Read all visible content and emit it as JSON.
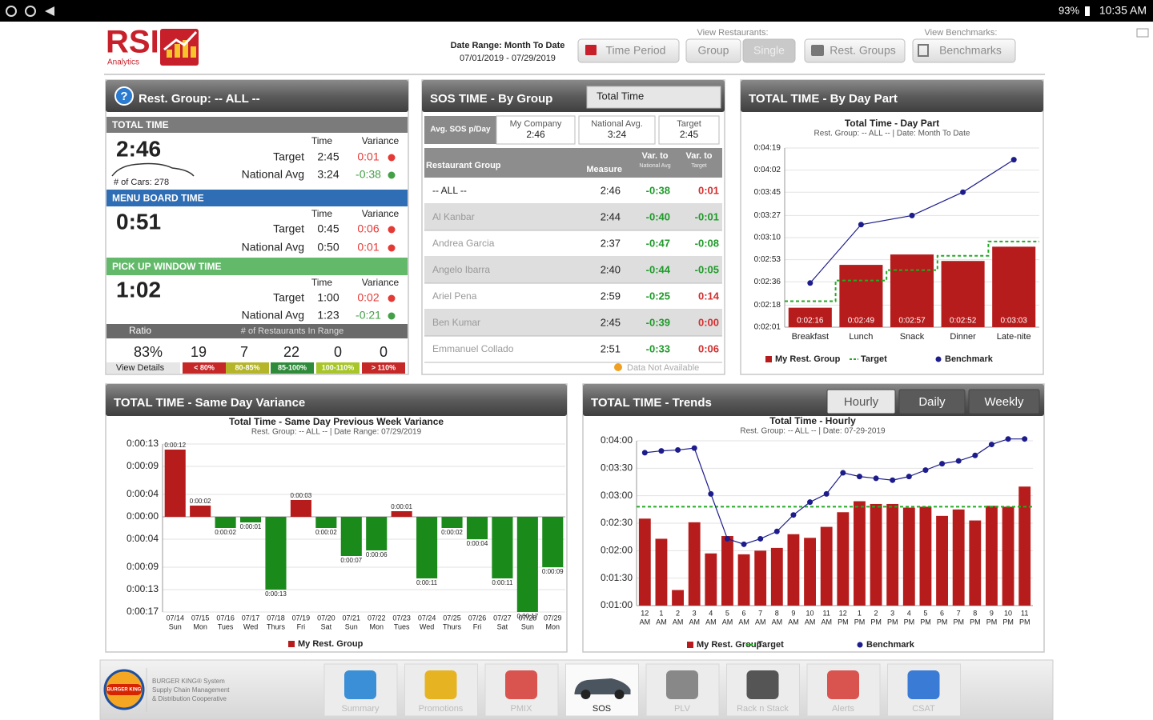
{
  "status_bar": {
    "battery": "93%",
    "time": "10:35 AM"
  },
  "header": {
    "logo": "RSI",
    "logo_sub": "Analytics",
    "date_range_label": "Date Range: Month To Date",
    "date_range": "07/01/2019 - 07/29/2019",
    "time_period": "Time Period",
    "view_restaurants": "View Restaurants:",
    "group": "Group",
    "single": "Single",
    "rest_groups": "Rest. Groups",
    "view_benchmarks": "View Benchmarks:",
    "benchmarks": "Benchmarks"
  },
  "summary": {
    "help": "?",
    "title": "Rest. Group: -- ALL --",
    "col_time": "Time",
    "col_variance": "Variance",
    "sections": [
      {
        "name": "TOTAL TIME",
        "value": "2:46",
        "note": "# of Cars: 278",
        "rows": [
          {
            "label": "Target",
            "time": "2:45",
            "variance": "0:01",
            "color": "#e53935"
          },
          {
            "label": "National Avg",
            "time": "3:24",
            "variance": "-0:38",
            "color": "#43a047"
          }
        ]
      },
      {
        "name": "MENU BOARD TIME",
        "value": "0:51",
        "rows": [
          {
            "label": "Target",
            "time": "0:45",
            "variance": "0:06",
            "color": "#e53935"
          },
          {
            "label": "National Avg",
            "time": "0:50",
            "variance": "0:01",
            "color": "#e53935"
          }
        ]
      },
      {
        "name": "PICK UP WINDOW TIME",
        "value": "1:02",
        "rows": [
          {
            "label": "Target",
            "time": "1:00",
            "variance": "0:02",
            "color": "#e53935"
          },
          {
            "label": "National Avg",
            "time": "1:23",
            "variance": "-0:21",
            "color": "#43a047"
          }
        ]
      }
    ],
    "ratio_label": "Ratio",
    "range_label": "# of Restaurants In Range",
    "ratio": "83%",
    "counts": [
      "19",
      "7",
      "22",
      "0",
      "0"
    ],
    "view_details": "View Details",
    "ranges": [
      "< 80%",
      "80-85%",
      "85-100%",
      "100-110%",
      "> 110%"
    ],
    "range_colors": [
      "#c62828",
      "#b5b52a",
      "#2e8b3a",
      "#a8c62a",
      "#c62828"
    ]
  },
  "sos": {
    "title": "SOS TIME - By Group",
    "dropdown": "Total Time",
    "avg_label": "Avg. SOS p/Day",
    "summary": [
      {
        "label": "My Company",
        "value": "2:46"
      },
      {
        "label": "National Avg.",
        "value": "3:24"
      },
      {
        "label": "Target",
        "value": "2:45"
      }
    ],
    "columns": [
      "Restaurant Group",
      "Measure",
      [
        "Var. to",
        "National Avg"
      ],
      [
        "Var. to",
        "Target"
      ]
    ],
    "rows": [
      [
        "-- ALL --",
        "2:46",
        "-0:38",
        "0:01"
      ],
      [
        "Al Kanbar",
        "2:44",
        "-0:40",
        "-0:01"
      ],
      [
        "Andrea Garcia",
        "2:37",
        "-0:47",
        "-0:08"
      ],
      [
        "Angelo Ibarra",
        "2:40",
        "-0:44",
        "-0:05"
      ],
      [
        "Ariel Pena",
        "2:59",
        "-0:25",
        "0:14"
      ],
      [
        "Ben Kumar",
        "2:45",
        "-0:39",
        "0:00"
      ],
      [
        "Emmanuel Collado",
        "2:51",
        "-0:33",
        "0:06"
      ]
    ],
    "footer": "Data Not Available"
  },
  "day_part_chart": {
    "type": "bar",
    "panel_title": "TOTAL TIME - By Day Part",
    "title": "Total Time - Day Part",
    "subtitle": "Rest. Group: -- ALL -- | Date: Month To Date",
    "categories": [
      "Breakfast",
      "Lunch",
      "Snack",
      "Dinner",
      "Late-nite"
    ],
    "ylim": [
      121,
      259
    ],
    "yticks": [
      {
        "value": 259,
        "label": "0:04:19"
      },
      {
        "value": 242,
        "label": "0:04:02"
      },
      {
        "value": 225,
        "label": "0:03:45"
      },
      {
        "value": 207,
        "label": "0:03:27"
      },
      {
        "value": 190,
        "label": "0:03:10"
      },
      {
        "value": 173,
        "label": "0:02:53"
      },
      {
        "value": 156,
        "label": "0:02:36"
      },
      {
        "value": 138,
        "label": "0:02:18"
      },
      {
        "value": 121,
        "label": "0:02:01"
      }
    ],
    "grid": true,
    "series": [
      {
        "name": "My Rest. Group",
        "type": "bar",
        "color": "#b71c1c",
        "values": [
          136,
          169,
          177,
          172,
          183
        ],
        "value_labels": [
          "0:02:16",
          "0:02:49",
          "0:02:57",
          "0:02:52",
          "0:03:03"
        ]
      },
      {
        "name": "Target",
        "type": "step",
        "color": "#22aa22",
        "values": [
          141,
          157,
          165,
          176,
          187
        ]
      },
      {
        "name": "Benchmark",
        "type": "line",
        "color": "#1c1c8c",
        "values": [
          155,
          200,
          207,
          225,
          250
        ]
      }
    ]
  },
  "variance_chart": {
    "type": "bar",
    "panel_title": "TOTAL TIME - Same Day Variance",
    "title": "Total Time - Same Day Previous Week Variance",
    "subtitle": "Rest. Group: -- ALL -- | Date Range: 07/29/2019",
    "categories": [
      "07/14",
      "07/15",
      "07/16",
      "07/17",
      "07/18",
      "07/19",
      "07/20",
      "07/21",
      "07/22",
      "07/23",
      "07/24",
      "07/25",
      "07/26",
      "07/27",
      "07/28",
      "07/29"
    ],
    "category_sub": [
      "Sun",
      "Mon",
      "Tues",
      "Wed",
      "Thurs",
      "Fri",
      "Sat",
      "Sun",
      "Mon",
      "Tues",
      "Wed",
      "Thurs",
      "Fri",
      "Sat",
      "Sun",
      "Mon"
    ],
    "ylim": [
      -17,
      13
    ],
    "yticks": [
      {
        "value": 13,
        "label": "0:00:13"
      },
      {
        "value": 9,
        "label": "0:00:09"
      },
      {
        "value": 4,
        "label": "0:00:04"
      },
      {
        "value": 0,
        "label": "0:00:00"
      },
      {
        "value": -4,
        "label": "0:00:04"
      },
      {
        "value": -9,
        "label": "0:00:09"
      },
      {
        "value": -13,
        "label": "0:00:13"
      },
      {
        "value": -17,
        "label": "0:00:17"
      }
    ],
    "grid": true,
    "series": [
      {
        "name": "My Rest. Group",
        "type": "bar",
        "color": "#b71c1c",
        "negative_color": "#1a8a1a",
        "values": [
          12,
          2,
          -2,
          -1,
          -13,
          3,
          -2,
          -7,
          -6,
          1,
          -11,
          -2,
          -4,
          -11,
          -17,
          -9
        ],
        "value_labels": [
          "0:00:12",
          "0:00:02",
          "0:00:02",
          "0:00:01",
          "0:00:13",
          "0:00:03",
          "0:00:02",
          "0:00:07",
          "0:00:06",
          "0:00:01",
          "0:00:11",
          "0:00:02",
          "0:00:04",
          "0:00:11",
          "0:00:17",
          "0:00:09"
        ]
      }
    ]
  },
  "hourly_chart": {
    "type": "bar",
    "panel_title": "TOTAL TIME - Trends",
    "tabs": [
      "Hourly",
      "Daily",
      "Weekly"
    ],
    "active_tab": "Hourly",
    "title": "Total Time - Hourly",
    "subtitle": "Rest. Group: -- ALL -- | Date: 07-29-2019",
    "categories": [
      "12",
      "1",
      "2",
      "3",
      "4",
      "5",
      "6",
      "7",
      "8",
      "9",
      "10",
      "11",
      "12",
      "1",
      "2",
      "3",
      "4",
      "5",
      "6",
      "7",
      "8",
      "9",
      "10",
      "11"
    ],
    "category_sub": [
      "AM",
      "AM",
      "AM",
      "AM",
      "AM",
      "AM",
      "AM",
      "AM",
      "AM",
      "AM",
      "AM",
      "AM",
      "PM",
      "PM",
      "PM",
      "PM",
      "PM",
      "PM",
      "PM",
      "PM",
      "PM",
      "PM",
      "PM",
      "PM"
    ],
    "ylim": [
      60,
      240
    ],
    "yticks": [
      {
        "value": 240,
        "label": "0:04:00"
      },
      {
        "value": 210,
        "label": "0:03:30"
      },
      {
        "value": 180,
        "label": "0:03:00"
      },
      {
        "value": 150,
        "label": "0:02:30"
      },
      {
        "value": 120,
        "label": "0:02:00"
      },
      {
        "value": 90,
        "label": "0:01:30"
      },
      {
        "value": 60,
        "label": "0:01:00"
      }
    ],
    "grid": true,
    "series": [
      {
        "name": "My Rest. Group",
        "type": "bar",
        "color": "#b71c1c",
        "values": [
          155,
          133,
          77,
          151,
          117,
          136,
          116,
          120,
          123,
          138,
          134,
          146,
          162,
          174,
          171,
          171,
          167,
          168,
          158,
          165,
          153,
          169,
          168,
          190
        ]
      },
      {
        "name": "Target",
        "type": "step",
        "color": "#22aa22",
        "values": [
          168,
          168,
          168,
          168,
          168,
          168,
          168,
          168,
          168,
          168,
          168,
          168,
          168,
          168,
          168,
          168,
          168,
          168,
          168,
          168,
          168,
          168,
          168,
          168
        ]
      },
      {
        "name": "Benchmark",
        "type": "line",
        "color": "#1c1c8c",
        "values": [
          227,
          229,
          230,
          232,
          182,
          133,
          127,
          133,
          141,
          159,
          173,
          182,
          205,
          201,
          199,
          197,
          201,
          208,
          215,
          218,
          224,
          236,
          242,
          242
        ]
      }
    ]
  },
  "nav": {
    "brand": "BURGER KING",
    "brand_text": [
      "BURGER KING® System",
      "Supply Chain Management",
      "& Distribution Cooperative"
    ],
    "tabs": [
      "Summary",
      "Promotions",
      "PMIX",
      "SOS",
      "PLV",
      "Rack n Stack",
      "Alerts",
      "CSAT"
    ],
    "active": "SOS"
  }
}
